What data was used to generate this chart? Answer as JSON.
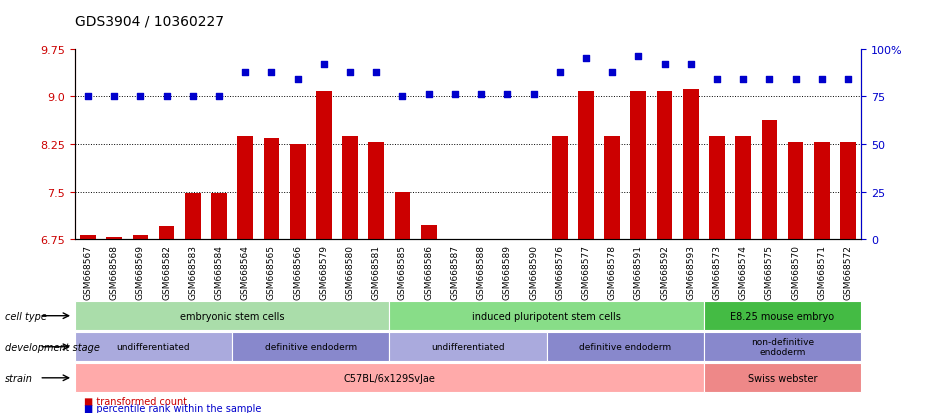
{
  "title": "GDS3904 / 10360227",
  "samples": [
    "GSM668567",
    "GSM668568",
    "GSM668569",
    "GSM668582",
    "GSM668583",
    "GSM668584",
    "GSM668564",
    "GSM668565",
    "GSM668566",
    "GSM668579",
    "GSM668580",
    "GSM668581",
    "GSM668585",
    "GSM668586",
    "GSM668587",
    "GSM668588",
    "GSM668589",
    "GSM668590",
    "GSM668576",
    "GSM668577",
    "GSM668578",
    "GSM668591",
    "GSM668592",
    "GSM668593",
    "GSM668573",
    "GSM668574",
    "GSM668575",
    "GSM668570",
    "GSM668571",
    "GSM668572"
  ],
  "bar_values": [
    6.82,
    6.78,
    6.82,
    6.95,
    7.48,
    7.48,
    8.38,
    8.35,
    8.25,
    9.08,
    8.38,
    8.28,
    7.5,
    6.98,
    6.72,
    6.72,
    6.72,
    6.7,
    8.38,
    9.08,
    8.38,
    9.08,
    9.08,
    9.12,
    8.38,
    8.38,
    8.62,
    8.28,
    8.28,
    8.28
  ],
  "percentile_values": [
    75,
    75,
    75,
    75,
    75,
    75,
    88,
    88,
    84,
    92,
    88,
    88,
    75,
    76,
    76,
    76,
    76,
    76,
    88,
    95,
    88,
    96,
    92,
    92,
    84,
    84,
    84,
    84,
    84,
    84
  ],
  "ylim_left": [
    6.75,
    9.75
  ],
  "ylim_right": [
    0,
    100
  ],
  "yticks_left": [
    6.75,
    7.5,
    8.25,
    9.0,
    9.75
  ],
  "yticks_right": [
    0,
    25,
    50,
    75,
    100
  ],
  "bar_color": "#cc0000",
  "dot_color": "#0000cc",
  "grid_color": "#000000",
  "cell_type_groups": [
    {
      "label": "embryonic stem cells",
      "start": 0,
      "end": 11,
      "color": "#aaddaa"
    },
    {
      "label": "induced pluripotent stem cells",
      "start": 12,
      "end": 23,
      "color": "#88dd88"
    },
    {
      "label": "E8.25 mouse embryo",
      "start": 24,
      "end": 29,
      "color": "#44bb44"
    }
  ],
  "dev_stage_groups": [
    {
      "label": "undifferentiated",
      "start": 0,
      "end": 5,
      "color": "#aaaadd"
    },
    {
      "label": "definitive endoderm",
      "start": 6,
      "end": 11,
      "color": "#8888cc"
    },
    {
      "label": "undifferentiated",
      "start": 12,
      "end": 17,
      "color": "#aaaadd"
    },
    {
      "label": "definitive endoderm",
      "start": 18,
      "end": 23,
      "color": "#8888cc"
    },
    {
      "label": "non-definitive\nendoderm",
      "start": 24,
      "end": 29,
      "color": "#8888cc"
    }
  ],
  "strain_groups": [
    {
      "label": "C57BL/6x129SvJae",
      "start": 0,
      "end": 23,
      "color": "#ffaaaa"
    },
    {
      "label": "Swiss webster",
      "start": 24,
      "end": 29,
      "color": "#ee8888"
    }
  ],
  "row_labels": [
    "cell type",
    "development stage",
    "strain"
  ],
  "legend_items": [
    {
      "label": "transformed count",
      "color": "#cc0000",
      "marker": "s"
    },
    {
      "label": "percentile rank within the sample",
      "color": "#0000cc",
      "marker": "s"
    }
  ]
}
